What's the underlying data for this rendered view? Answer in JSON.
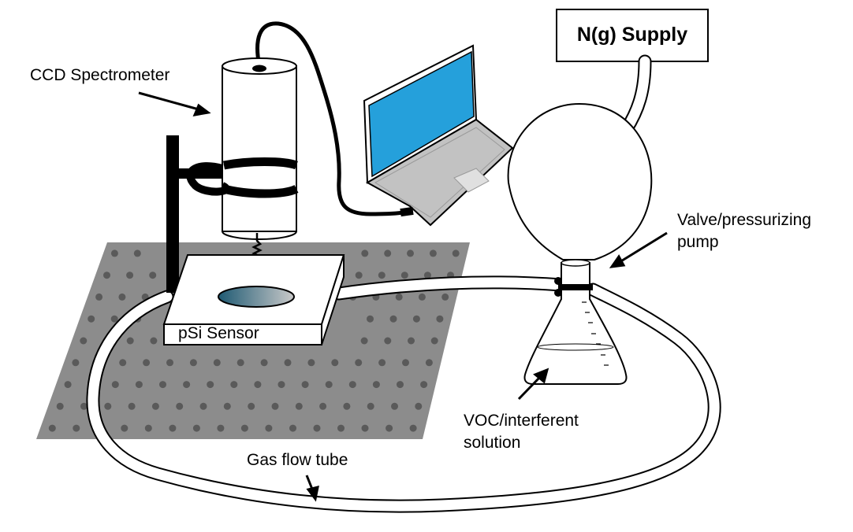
{
  "labels": {
    "ccd_spectrometer": "CCD Spectrometer",
    "n2_supply": "N(g) Supply",
    "valve_pump_line1": "Valve/pressurizing",
    "valve_pump_line2": "pump",
    "psi_sensor": "pSi Sensor",
    "voc_line1": "VOC/interferent",
    "voc_line2": "solution",
    "gas_flow_tube": "Gas flow tube"
  },
  "colors": {
    "optical_table": "#8c8c8c",
    "table_holes": "#5a5a5a",
    "laptop_screen": "#25a0db",
    "laptop_body": "#c2c2c2",
    "sensor_gradient_start": "#1f5a73",
    "sensor_gradient_end": "#c9c9c9",
    "outline": "#000000"
  }
}
